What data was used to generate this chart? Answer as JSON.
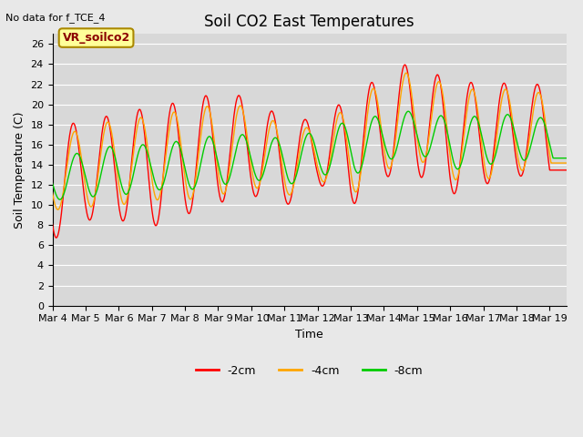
{
  "title": "Soil CO2 East Temperatures",
  "xlabel": "Time",
  "ylabel": "Soil Temperature (C)",
  "no_data_text": "No data for f_TCE_4",
  "annotation_text": "VR_soilco2",
  "ylim": [
    0,
    27
  ],
  "background_color": "#e8e8e8",
  "plot_bg_color": "#d8d8d8",
  "colors": {
    "-2cm": "#ff0000",
    "-4cm": "#ffa500",
    "-8cm": "#00cc00"
  },
  "yticks": [
    0,
    2,
    4,
    6,
    8,
    10,
    12,
    14,
    16,
    18,
    20,
    22,
    24,
    26
  ],
  "xtick_labels": [
    "Mar 4",
    "Mar 5",
    "Mar 6",
    "Mar 7",
    "Mar 8",
    "Mar 9",
    "Mar 10",
    "Mar 11",
    "Mar 12",
    "Mar 13",
    "Mar 14",
    "Mar 15",
    "Mar 16",
    "Mar 17",
    "Mar 18",
    "Mar 19"
  ],
  "peaks_2cm": [
    17.5,
    18.5,
    19.0,
    19.8,
    20.3,
    21.2,
    20.7,
    18.5,
    18.5,
    20.8,
    23.0,
    24.5,
    22.0,
    22.3,
    22.0,
    22.0
  ],
  "troughs_2cm": [
    6.5,
    8.5,
    8.5,
    7.8,
    9.0,
    10.2,
    11.0,
    9.8,
    12.2,
    9.8,
    12.8,
    13.0,
    11.0,
    12.0,
    13.0,
    12.0
  ],
  "peaks_4cm": [
    16.5,
    17.8,
    18.5,
    18.8,
    19.5,
    20.0,
    19.8,
    17.5,
    17.8,
    20.0,
    22.5,
    23.5,
    21.5,
    21.5,
    21.5,
    21.0
  ],
  "troughs_4cm": [
    9.5,
    9.8,
    10.0,
    10.5,
    10.5,
    11.0,
    11.8,
    10.8,
    12.5,
    11.0,
    13.5,
    14.5,
    12.5,
    12.5,
    13.5,
    13.0
  ],
  "peaks_8cm": [
    14.5,
    15.5,
    16.0,
    16.0,
    16.5,
    17.0,
    17.0,
    16.5,
    17.5,
    18.5,
    19.0,
    19.5,
    18.5,
    19.0,
    19.0,
    18.5
  ],
  "troughs_8cm": [
    10.5,
    10.8,
    11.0,
    11.5,
    11.5,
    12.0,
    12.5,
    12.0,
    13.0,
    13.0,
    14.5,
    15.0,
    13.5,
    14.0,
    14.5,
    14.0
  ],
  "n_points": 1488,
  "xlim_max": 15.5,
  "lag_hours_4cm": 1.0,
  "lag_hours_8cm": 2.5
}
